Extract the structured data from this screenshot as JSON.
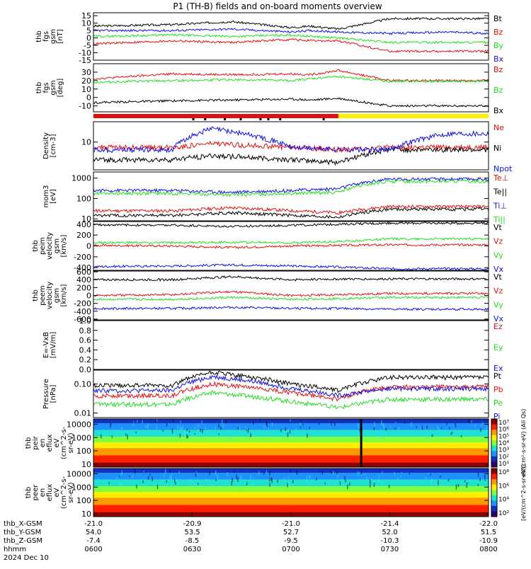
{
  "title": "P1 (TH-B) fields and on-board moments overview",
  "colors": {
    "black": "#000000",
    "red": "#e01010",
    "green": "#22dd22",
    "blue": "#1010e0",
    "yellow": "#ffee00",
    "white": "#ffffff"
  },
  "chart_data": [
    {
      "type": "line",
      "panel": "fgs",
      "ylabel_lines": [
        "thb",
        "fgs",
        "gsm",
        "[nT]"
      ],
      "ylim": [
        -15,
        17
      ],
      "yticks": [
        "15",
        "10",
        "5",
        "0",
        "-5",
        "-10",
        "-15"
      ],
      "ytick_values": [
        15,
        10,
        5,
        0,
        -5,
        -10,
        -15
      ],
      "series": [
        {
          "name": "Bt",
          "color": "black",
          "x": [
            0,
            0.2,
            0.35,
            0.5,
            0.55,
            0.62,
            0.75,
            0.9,
            1.0
          ],
          "values": [
            8,
            9,
            11,
            7,
            8,
            6,
            13,
            13,
            13
          ]
        },
        {
          "name": "Bz",
          "color": "red",
          "x": [
            0,
            0.2,
            0.35,
            0.5,
            0.55,
            0.62,
            0.75,
            0.9,
            1.0
          ],
          "values": [
            -4,
            -2,
            -3,
            -1,
            -2,
            -2,
            -9,
            -9,
            -9
          ]
        },
        {
          "name": "By",
          "color": "green",
          "x": [
            0,
            0.2,
            0.35,
            0.5,
            0.55,
            0.62,
            0.75,
            0.9,
            1.0
          ],
          "values": [
            1,
            2,
            1,
            2,
            1,
            0,
            -3,
            -3,
            -3
          ]
        },
        {
          "name": "Bx",
          "color": "blue",
          "x": [
            0,
            0.2,
            0.35,
            0.5,
            0.55,
            0.62,
            0.75,
            0.9,
            1.0
          ],
          "values": [
            5,
            5,
            6,
            4,
            5,
            4,
            3,
            4,
            3
          ]
        }
      ]
    },
    {
      "type": "line",
      "panel": "fgs-angles",
      "ylabel_lines": [
        "thb",
        "fgs",
        "gsm",
        "[deg]"
      ],
      "ylim": [
        -17,
        40
      ],
      "yticks": [
        "30",
        "20",
        "10",
        "0",
        "-10"
      ],
      "ytick_values": [
        30,
        20,
        10,
        0,
        -10
      ],
      "series": [
        {
          "name": "Bz",
          "color": "red",
          "x": [
            0,
            0.2,
            0.35,
            0.5,
            0.55,
            0.62,
            0.75,
            0.9,
            1.0
          ],
          "values": [
            22,
            28,
            27,
            28,
            27,
            32,
            20,
            20,
            20
          ]
        },
        {
          "name": "Bz",
          "color": "green",
          "x": [
            0,
            0.2,
            0.35,
            0.5,
            0.55,
            0.62,
            0.75,
            0.9,
            1.0
          ],
          "values": [
            18,
            20,
            21,
            20,
            22,
            25,
            19,
            19,
            19
          ]
        },
        {
          "name": "Bx",
          "color": "black",
          "x": [
            0,
            0.2,
            0.35,
            0.5,
            0.55,
            0.62,
            0.75,
            0.9,
            1.0
          ],
          "values": [
            -6,
            -4,
            -3,
            -2,
            -3,
            -1,
            -10,
            -10,
            -10
          ]
        }
      ]
    },
    {
      "type": "line",
      "panel": "density",
      "ylabel_lines": [
        "Density",
        "[cm-3]"
      ],
      "ylim_log": [
        1.5,
        40
      ],
      "yticks": [
        "10"
      ],
      "ytick_values": [
        10
      ],
      "series": [
        {
          "name": "Ne",
          "color": "red",
          "x": [
            0,
            0.2,
            0.3,
            0.5,
            0.62,
            0.75,
            0.9,
            1.0
          ],
          "values": [
            7,
            7,
            9,
            7,
            6,
            7,
            7,
            7
          ]
        },
        {
          "name": "Ni",
          "color": "black",
          "x": [
            0,
            0.2,
            0.3,
            0.5,
            0.62,
            0.75,
            0.9,
            1.0
          ],
          "values": [
            3,
            3,
            4,
            3,
            2.5,
            6,
            6,
            6
          ]
        },
        {
          "name": "Npot",
          "color": "blue",
          "x": [
            0,
            0.2,
            0.3,
            0.5,
            0.62,
            0.75,
            0.9,
            1.0
          ],
          "values": [
            6,
            6,
            25,
            7,
            6,
            6,
            18,
            18
          ]
        }
      ]
    },
    {
      "type": "line",
      "panel": "temperature",
      "ylabel_lines": [
        "mom3",
        "[eV]"
      ],
      "ylim_log": [
        8,
        2000
      ],
      "yticks": [
        "1000",
        "100",
        "10"
      ],
      "ytick_values": [
        1000,
        100,
        10
      ],
      "series": [
        {
          "name": "Te⊥",
          "color": "red",
          "x": [
            0,
            0.2,
            0.35,
            0.5,
            0.62,
            0.75,
            0.9,
            1.0
          ],
          "values": [
            25,
            25,
            35,
            25,
            20,
            40,
            40,
            40
          ]
        },
        {
          "name": "Te||",
          "color": "black",
          "x": [
            0,
            0.2,
            0.35,
            0.5,
            0.62,
            0.75,
            0.9,
            1.0
          ],
          "values": [
            15,
            15,
            20,
            15,
            12,
            30,
            30,
            30
          ]
        },
        {
          "name": "Ti⊥",
          "color": "blue",
          "x": [
            0,
            0.2,
            0.35,
            0.5,
            0.62,
            0.75,
            0.9,
            1.0
          ],
          "values": [
            250,
            250,
            200,
            250,
            300,
            900,
            900,
            900
          ]
        },
        {
          "name": "Ti||",
          "color": "green",
          "x": [
            0,
            0.2,
            0.35,
            0.5,
            0.62,
            0.75,
            0.9,
            1.0
          ],
          "values": [
            180,
            180,
            150,
            180,
            200,
            700,
            700,
            700
          ]
        }
      ]
    },
    {
      "type": "line",
      "panel": "peim-velocity",
      "ylabel_lines": [
        "thb",
        "peim",
        "velocity",
        "gsm",
        "[km/s]"
      ],
      "ylim": [
        -450,
        450
      ],
      "yticks": [
        "400",
        "200",
        "0",
        "-200",
        "-400"
      ],
      "ytick_values": [
        400,
        200,
        0,
        -200,
        -400
      ],
      "series": [
        {
          "name": "Vt",
          "color": "black",
          "x": [
            0,
            0.2,
            0.35,
            0.5,
            0.62,
            0.75,
            0.9,
            1.0
          ],
          "values": [
            390,
            380,
            360,
            380,
            400,
            420,
            420,
            420
          ]
        },
        {
          "name": "Vz",
          "color": "red",
          "x": [
            0,
            0.2,
            0.35,
            0.5,
            0.62,
            0.75,
            0.9,
            1.0
          ],
          "values": [
            10,
            0,
            -30,
            0,
            10,
            20,
            20,
            20
          ]
        },
        {
          "name": "Vy",
          "color": "green",
          "x": [
            0,
            0.2,
            0.35,
            0.5,
            0.62,
            0.75,
            0.9,
            1.0
          ],
          "values": [
            60,
            60,
            70,
            60,
            80,
            130,
            130,
            130
          ]
        },
        {
          "name": "Vx",
          "color": "blue",
          "x": [
            0,
            0.2,
            0.35,
            0.5,
            0.62,
            0.75,
            0.9,
            1.0
          ],
          "values": [
            -380,
            -370,
            -350,
            -370,
            -390,
            -420,
            -420,
            -420
          ]
        }
      ]
    },
    {
      "type": "line",
      "panel": "peem-velocity",
      "ylabel_lines": [
        "thb",
        "peem",
        "velocity",
        "gsm",
        "[km/s]"
      ],
      "ylim": [
        -620,
        620
      ],
      "yticks": [
        "600",
        "400",
        "200",
        "0",
        "-200",
        "-400",
        "-600"
      ],
      "ytick_values": [
        600,
        400,
        200,
        0,
        -200,
        -400,
        -600
      ],
      "series": [
        {
          "name": "Vt",
          "color": "black",
          "x": [
            0,
            0.2,
            0.35,
            0.5,
            0.62,
            0.75,
            0.9,
            1.0
          ],
          "values": [
            400,
            400,
            480,
            400,
            420,
            420,
            420,
            420
          ]
        },
        {
          "name": "Vz",
          "color": "red",
          "x": [
            0,
            0.2,
            0.35,
            0.5,
            0.62,
            0.75,
            0.9,
            1.0
          ],
          "values": [
            0,
            20,
            100,
            0,
            20,
            50,
            50,
            50
          ]
        },
        {
          "name": "Vy",
          "color": "green",
          "x": [
            0,
            0.2,
            0.35,
            0.5,
            0.62,
            0.75,
            0.9,
            1.0
          ],
          "values": [
            -100,
            -100,
            -50,
            -100,
            -80,
            -50,
            -50,
            -50
          ]
        },
        {
          "name": "Vx",
          "color": "blue",
          "x": [
            0,
            0.2,
            0.35,
            0.5,
            0.62,
            0.75,
            0.9,
            1.0
          ],
          "values": [
            -330,
            -330,
            -300,
            -330,
            -330,
            -350,
            -350,
            -350
          ]
        }
      ]
    },
    {
      "type": "line",
      "panel": "efield",
      "ylabel_lines": [
        "E=-VxB",
        "[mV/m]"
      ],
      "ylim": [
        0,
        1
      ],
      "yticks": [
        "1.0",
        "0.8",
        "0.6",
        "0.4",
        "0.2",
        "0.0"
      ],
      "ytick_values": [
        1.0,
        0.8,
        0.6,
        0.4,
        0.2,
        0.0
      ],
      "series": [
        {
          "name": "Ez",
          "color": "red",
          "x": [],
          "values": []
        },
        {
          "name": "Ey",
          "color": "green",
          "x": [],
          "values": []
        },
        {
          "name": "Ex",
          "color": "blue",
          "x": [],
          "values": []
        }
      ]
    },
    {
      "type": "line",
      "panel": "pressure",
      "ylabel_lines": [
        "Pressure",
        "[nPa]"
      ],
      "ylim_log": [
        0.007,
        0.3
      ],
      "yticks": [
        "0.10",
        "0.01"
      ],
      "ytick_values": [
        0.1,
        0.01
      ],
      "series": [
        {
          "name": "Pt",
          "color": "black",
          "x": [
            0,
            0.2,
            0.3,
            0.5,
            0.62,
            0.75,
            0.9,
            1.0
          ],
          "values": [
            0.09,
            0.09,
            0.25,
            0.1,
            0.06,
            0.17,
            0.17,
            0.17
          ]
        },
        {
          "name": "Pb",
          "color": "red",
          "x": [
            0,
            0.2,
            0.3,
            0.5,
            0.62,
            0.75,
            0.9,
            1.0
          ],
          "values": [
            0.04,
            0.04,
            0.1,
            0.05,
            0.03,
            0.08,
            0.08,
            0.08
          ]
        },
        {
          "name": "Pe",
          "color": "green",
          "x": [
            0,
            0.2,
            0.3,
            0.5,
            0.62,
            0.75,
            0.9,
            1.0
          ],
          "values": [
            0.02,
            0.02,
            0.05,
            0.025,
            0.015,
            0.03,
            0.03,
            0.03
          ]
        },
        {
          "name": "Pi",
          "color": "blue",
          "x": [
            0,
            0.2,
            0.3,
            0.5,
            0.62,
            0.75,
            0.9,
            1.0
          ],
          "values": [
            0.06,
            0.06,
            0.18,
            0.07,
            0.04,
            0.07,
            0.07,
            0.07
          ]
        }
      ]
    },
    {
      "type": "heatmap",
      "panel": "peir",
      "ylabel_lines": [
        "thb",
        "peir",
        "en",
        "eflux",
        "eV",
        "(cm^2-s-",
        "sr-eV)"
      ],
      "yticks": [
        "10000",
        "1000",
        "100",
        "10"
      ],
      "ytick_values": [
        10000,
        1000,
        100,
        10
      ],
      "ylim_log": [
        6,
        25000
      ]
    },
    {
      "type": "heatmap",
      "panel": "peer",
      "ylabel_lines": [
        "thb",
        "peer",
        "en",
        "eflux",
        "eV",
        "(cm^2-s-",
        "sr-eV)"
      ],
      "yticks": [
        "10000",
        "1000",
        "100",
        "10"
      ],
      "ytick_values": [
        10000,
        1000,
        100,
        10
      ],
      "ylim_log": [
        6,
        25000
      ]
    }
  ],
  "colorbar_top": {
    "ticks": [
      "10⁷",
      "10⁶",
      "10⁵",
      "10⁴",
      "10³",
      "10²",
      "10¹"
    ],
    "label": "eV/(cm²-s-sr-eV) (All Qs)"
  },
  "colorbar_bottom": {
    "ticks": [
      "10⁸",
      "10⁶",
      "10⁴",
      "10²"
    ],
    "label": "[eV/(cm^2-s-sr-eV)]"
  },
  "x_axis": {
    "row_labels": [
      "thb_X-GSM",
      "thb_Y-GSM",
      "thb_Z-GSM",
      "hhmm",
      "2024 Dec 10"
    ],
    "ticks": [
      {
        "x": "-21.0",
        "y": "54.0",
        "z": "-7.4",
        "t": "0600"
      },
      {
        "x": "-20.9",
        "y": "53.5",
        "z": "-8.5",
        "t": "0630"
      },
      {
        "x": "-21.0",
        "y": "52.7",
        "z": "-9.5",
        "t": "0700"
      },
      {
        "x": "-21.4",
        "y": "52.0",
        "z": "-10.3",
        "t": "0730"
      },
      {
        "x": "-22.0",
        "y": "51.5",
        "z": "-10.9",
        "t": "0800"
      }
    ]
  }
}
